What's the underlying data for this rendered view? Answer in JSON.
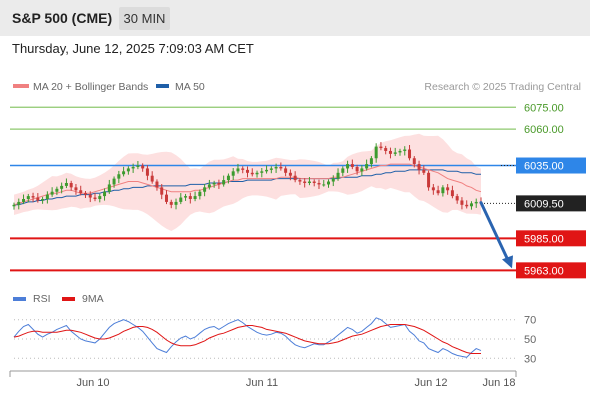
{
  "header": {
    "title": "S&P 500 (CME)",
    "timeframe": "30 MIN",
    "timestamp": "Thursday, June 12, 2025 7:09:03 AM CET"
  },
  "legend": {
    "bb_label": "MA 20 + Bollinger Bands",
    "ma50_label": "MA 50",
    "copyright": "Research © 2025 Trading Central"
  },
  "colors": {
    "bullish": "#3d9b2f",
    "bearish": "#c93a3a",
    "bollinger_fill": "#fde0e0",
    "ma20": "#f08080",
    "ma50": "#1f5fa8",
    "resistance": "#2e86e8",
    "support": "#e01515",
    "level_green": "#8ec86e",
    "arrow": "#2a64b0",
    "rsi": "#4d7ed8",
    "rsi_ma": "#e01515"
  },
  "chart_data": [
    {
      "type": "candlestick",
      "title": "S&P 500 (CME)",
      "ylim": [
        5955,
        6080
      ],
      "x_tick_labels": [
        "Jun 10",
        "Jun 11",
        "Jun 12",
        "Jun 18"
      ],
      "current_price": "6009.50",
      "levels": [
        {
          "label": "6075.00",
          "value": 6075,
          "kind": "target"
        },
        {
          "label": "6060.00",
          "value": 6060,
          "kind": "target"
        },
        {
          "label": "6035.00",
          "value": 6035,
          "kind": "resistance"
        },
        {
          "label": "5985.00",
          "value": 5985,
          "kind": "support"
        },
        {
          "label": "5963.00",
          "value": 5963,
          "kind": "support"
        }
      ],
      "projection": {
        "from": 6009.5,
        "to": 5963
      },
      "series": [
        {
          "name": "Price (close)",
          "values": [
            6008,
            6010,
            6012,
            6014,
            6013,
            6011,
            6012,
            6015,
            6017,
            6019,
            6021,
            6023,
            6020,
            6018,
            6016,
            6015,
            6013,
            6012,
            6014,
            6017,
            6022,
            6026,
            6029,
            6031,
            6033,
            6034,
            6035,
            6033,
            6028,
            6024,
            6020,
            6015,
            6010,
            6008,
            6010,
            6013,
            6014,
            6012,
            6014,
            6017,
            6020,
            6022,
            6023,
            6022,
            6025,
            6028,
            6031,
            6033,
            6032,
            6030,
            6029,
            6030,
            6031,
            6032,
            6033,
            6034,
            6033,
            6030,
            6028,
            6025,
            6024,
            6023,
            6024,
            6023,
            6022,
            6022,
            6024,
            6026,
            6030,
            6033,
            6036,
            6034,
            6031,
            6033,
            6036,
            6040,
            6048,
            6047,
            6045,
            6043,
            6044,
            6045,
            6046,
            6040,
            6036,
            6032,
            6030,
            6020,
            6018,
            6016,
            6020,
            6018,
            6014,
            6011,
            6008,
            6007,
            6009,
            6010,
            6009
          ]
        },
        {
          "name": "MA 20",
          "values": [
            6008,
            6009,
            6010,
            6011,
            6012,
            6013,
            6014,
            6015,
            6016,
            6016,
            6017,
            6018,
            6018,
            6017,
            6016,
            6016,
            6016,
            6017,
            6018,
            6019,
            6020,
            6021,
            6022,
            6023,
            6024,
            6024,
            6024,
            6023,
            6022,
            6021,
            6020,
            6019,
            6018,
            6017,
            6017,
            6017,
            6017,
            6017,
            6018,
            6018,
            6019,
            6020,
            6021,
            6022,
            6023,
            6024,
            6025,
            6025,
            6026,
            6026,
            6026,
            6026,
            6026,
            6026,
            6026,
            6026,
            6027,
            6027,
            6027,
            6027,
            6026,
            6026,
            6026,
            6026,
            6026,
            6026,
            6026,
            6027,
            6027,
            6027,
            6028,
            6029,
            6030,
            6031,
            6032,
            6033,
            6034,
            6035,
            6035,
            6036,
            6036,
            6036,
            6036,
            6036,
            6035,
            6034,
            6033,
            6032,
            6031,
            6030,
            6028,
            6026,
            6025,
            6024,
            6023,
            6021,
            6020,
            6018,
            6017
          ]
        },
        {
          "name": "MA 50",
          "values": [
            6008,
            6008,
            6009,
            6010,
            6010,
            6011,
            6011,
            6012,
            6012,
            6013,
            6013,
            6014,
            6014,
            6014,
            6015,
            6015,
            6015,
            6016,
            6016,
            6017,
            6017,
            6018,
            6018,
            6019,
            6019,
            6020,
            6020,
            6020,
            6021,
            6021,
            6021,
            6021,
            6021,
            6021,
            6021,
            6021,
            6021,
            6022,
            6022,
            6022,
            6022,
            6023,
            6023,
            6023,
            6023,
            6024,
            6024,
            6024,
            6024,
            6025,
            6025,
            6025,
            6025,
            6025,
            6025,
            6026,
            6026,
            6026,
            6026,
            6026,
            6026,
            6026,
            6026,
            6026,
            6026,
            6026,
            6026,
            6026,
            6026,
            6027,
            6027,
            6027,
            6027,
            6028,
            6028,
            6028,
            6029,
            6029,
            6030,
            6030,
            6031,
            6031,
            6031,
            6032,
            6032,
            6032,
            6032,
            6032,
            6032,
            6032,
            6032,
            6031,
            6031,
            6031,
            6030,
            6030,
            6030,
            6029,
            6029
          ]
        }
      ]
    },
    {
      "type": "line",
      "title": "RSI",
      "ylim": [
        22,
        78
      ],
      "y_tick_labels": [
        "70",
        "50",
        "30"
      ],
      "y_ticks": [
        70,
        50,
        30
      ],
      "series": [
        {
          "name": "RSI",
          "values": [
            52,
            58,
            63,
            65,
            60,
            55,
            52,
            55,
            57,
            60,
            62,
            64,
            58,
            54,
            50,
            48,
            47,
            46,
            50,
            56,
            62,
            66,
            68,
            70,
            68,
            65,
            62,
            58,
            52,
            46,
            40,
            38,
            36,
            42,
            47,
            51,
            53,
            50,
            52,
            56,
            60,
            62,
            63,
            60,
            63,
            66,
            68,
            70,
            67,
            63,
            60,
            57,
            55,
            54,
            55,
            57,
            56,
            53,
            48,
            44,
            42,
            41,
            43,
            45,
            44,
            44,
            47,
            50,
            54,
            58,
            62,
            60,
            56,
            58,
            62,
            66,
            72,
            70,
            66,
            62,
            63,
            64,
            65,
            58,
            54,
            48,
            46,
            40,
            38,
            36,
            40,
            38,
            35,
            33,
            32,
            31,
            36,
            40,
            38
          ]
        },
        {
          "name": "9MA",
          "values": [
            52,
            53,
            55,
            57,
            58,
            58,
            57,
            57,
            57,
            57,
            58,
            59,
            59,
            58,
            57,
            55,
            53,
            51,
            50,
            50,
            51,
            53,
            55,
            58,
            60,
            62,
            63,
            63,
            62,
            60,
            57,
            53,
            49,
            46,
            44,
            43,
            43,
            43,
            44,
            46,
            48,
            51,
            53,
            55,
            56,
            58,
            60,
            62,
            63,
            64,
            64,
            63,
            62,
            60,
            59,
            58,
            57,
            56,
            54,
            52,
            50,
            48,
            47,
            46,
            45,
            45,
            45,
            46,
            47,
            49,
            51,
            53,
            54,
            55,
            57,
            59,
            61,
            63,
            64,
            65,
            65,
            65,
            65,
            64,
            63,
            61,
            59,
            56,
            53,
            50,
            47,
            45,
            42,
            40,
            38,
            36,
            35,
            35,
            35
          ]
        }
      ]
    }
  ]
}
